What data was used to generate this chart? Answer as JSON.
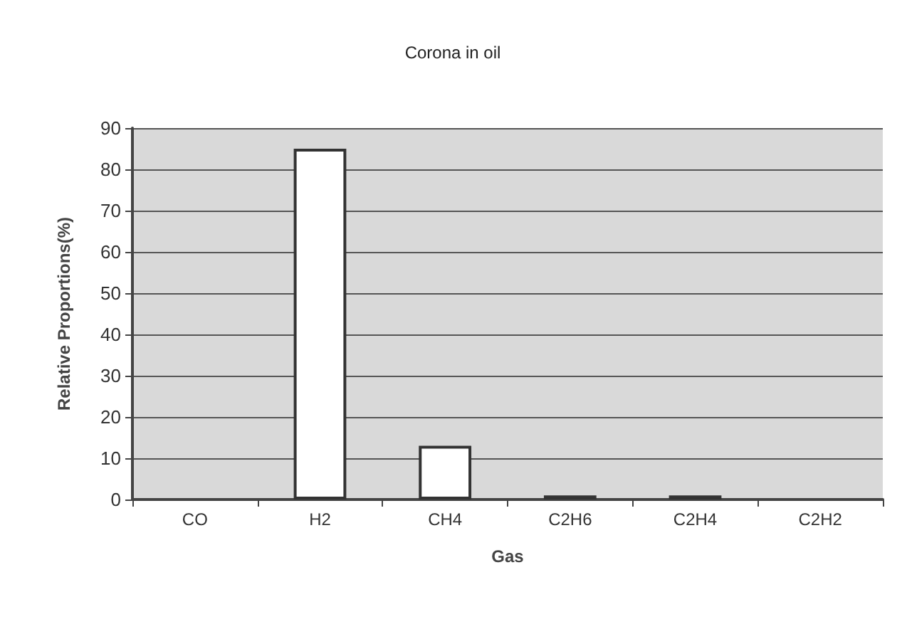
{
  "chart_data": {
    "type": "bar",
    "title": "Corona in oil",
    "xlabel": "Gas",
    "ylabel": "Relative Proportions(%)",
    "categories": [
      "CO",
      "H2",
      "CH4",
      "C2H6",
      "C2H4",
      "C2H2"
    ],
    "values": [
      0,
      85,
      13,
      1,
      1,
      0
    ],
    "color": "#ffffff",
    "ylim": [
      0,
      90
    ],
    "yticks": [
      0,
      10,
      20,
      30,
      40,
      50,
      60,
      70,
      80,
      90
    ],
    "grid": "y"
  }
}
